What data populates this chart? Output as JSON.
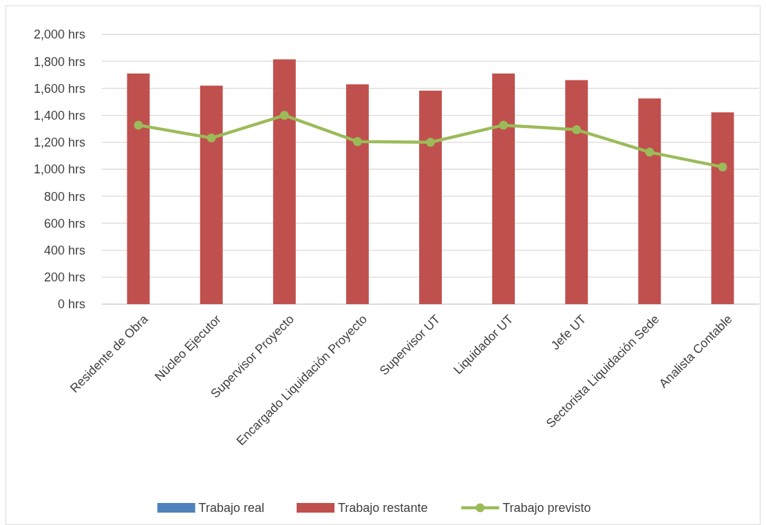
{
  "chart_data": {
    "type": "bar",
    "categories": [
      "Residente de Obra",
      "Núcleo Ejecutor",
      "Supervisor Proyecto",
      "Encargado Liquidación Proyecto",
      "Supervisor UT",
      "Liquidador UT",
      "Jefe UT",
      "Sectorista Liquidación Sede",
      "Analista Contable"
    ],
    "series": [
      {
        "name": "Trabajo real",
        "color": "#4f81bd",
        "values": [
          0,
          0,
          0,
          0,
          0,
          0,
          0,
          0,
          0
        ]
      },
      {
        "name": "Trabajo restante",
        "color": "#c0504d",
        "values": [
          1710,
          1620,
          1815,
          1630,
          1583,
          1710,
          1661,
          1525,
          1422
        ]
      },
      {
        "name": "Trabajo previsto",
        "type": "line",
        "color": "#9bbb59",
        "values": [
          1327,
          1232,
          1400,
          1205,
          1200,
          1327,
          1293,
          1127,
          1017
        ]
      }
    ],
    "ylim": [
      0,
      2000
    ],
    "yticks": [
      {
        "value": 0,
        "label": "0 hrs"
      },
      {
        "value": 200,
        "label": "200 hrs"
      },
      {
        "value": 400,
        "label": "400 hrs"
      },
      {
        "value": 600,
        "label": "600 hrs"
      },
      {
        "value": 800,
        "label": "800 hrs"
      },
      {
        "value": 1000,
        "label": "1,000 hrs"
      },
      {
        "value": 1200,
        "label": "1,200 hrs"
      },
      {
        "value": 1400,
        "label": "1,400 hrs"
      },
      {
        "value": 1600,
        "label": "1,600 hrs"
      },
      {
        "value": 1800,
        "label": "1,800 hrs"
      },
      {
        "value": 2000,
        "label": "2,000 hrs"
      }
    ],
    "grid": "y",
    "legend": "bottom",
    "marker": "circle",
    "line_style": "solid"
  }
}
